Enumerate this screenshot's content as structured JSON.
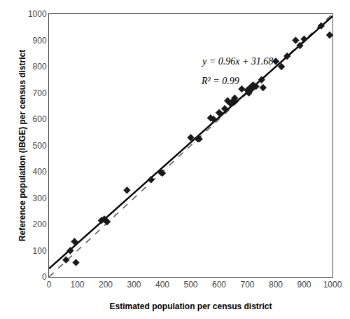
{
  "chart_data": {
    "type": "scatter",
    "xlabel": "Estimated population per census district",
    "ylabel": "Reference population (IBGE) per census district",
    "series": [
      {
        "type": "scatter",
        "marker": "diamond",
        "color": "#1a1a1a",
        "x": [
          60,
          75,
          90,
          95,
          185,
          195,
          200,
          205,
          275,
          360,
          395,
          400,
          500,
          525,
          530,
          570,
          580,
          600,
          605,
          620,
          630,
          640,
          650,
          655,
          680,
          700,
          705,
          710,
          715,
          720,
          730,
          750,
          755,
          800,
          820,
          840,
          870,
          885,
          900,
          960,
          990
        ],
        "values": [
          65,
          100,
          135,
          55,
          215,
          220,
          215,
          210,
          330,
          370,
          398,
          395,
          530,
          525,
          525,
          605,
          600,
          625,
          620,
          640,
          670,
          660,
          670,
          680,
          715,
          710,
          700,
          720,
          715,
          730,
          725,
          750,
          720,
          820,
          800,
          840,
          900,
          880,
          905,
          955,
          920
        ]
      },
      {
        "type": "line",
        "line_style": "dashed",
        "color": "#555555",
        "x": [
          0,
          1000
        ],
        "values": [
          0,
          1000
        ]
      },
      {
        "type": "line",
        "line_style": "solid",
        "color": "#000000",
        "x": [
          0,
          1000
        ],
        "values": [
          31.68,
          991.68
        ]
      }
    ],
    "annotations": [
      "y = 0.96x + 31.68",
      "R² = 0.99"
    ],
    "xlim": [
      0,
      1000
    ],
    "ylim": [
      0,
      1000
    ],
    "xticks": [
      0,
      100,
      200,
      300,
      400,
      500,
      600,
      700,
      800,
      900,
      1000
    ],
    "yticks": [
      0,
      100,
      200,
      300,
      400,
      500,
      600,
      700,
      800,
      900,
      1000
    ],
    "grid": false
  }
}
